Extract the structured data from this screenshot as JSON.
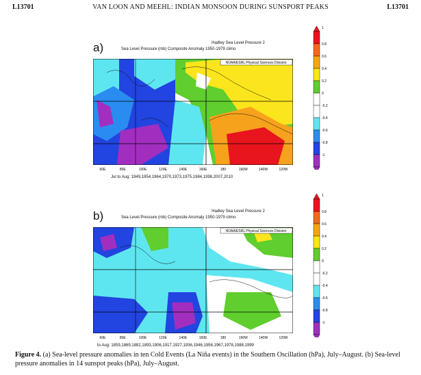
{
  "header": {
    "left": "L13701",
    "center": "VAN LOON AND MEEHL: INDIAN MONSOON DURING SUNSPORT PEAKS",
    "right": "L13701"
  },
  "panels": [
    {
      "label": "a)",
      "title": "Hadley Sea Level Pressure 2",
      "subtitle": "Sea Level Pressure (mb) Composite Anomaly 1950-1979 climo",
      "credit": "NOAA/ESRL Physical Sciences Division",
      "lon_ticks": [
        "60E",
        "80E",
        "100E",
        "120E",
        "140E",
        "160E",
        "180",
        "160W",
        "140W",
        "120W"
      ],
      "years_caption": "Jul to Aug: 1949,1954,1964,1970,1973,1975,1984,1998,2007,2010"
    },
    {
      "label": "b)",
      "title": "Hadley Sea Level Pressure 2",
      "subtitle": "Sea Level Pressure (mb) Composite Anomaly 1950-1979 climo",
      "credit": "NOAA/ESRL Physical Sciences Division",
      "lon_ticks": [
        "60E",
        "80E",
        "100E",
        "120E",
        "140E",
        "160E",
        "180",
        "160W",
        "140W",
        "120W"
      ],
      "years_caption": "to Aug: 1859,1869,1882,1893,1906,1917,1927,1936,1946,1956,1967,1978,1988,1999"
    }
  ],
  "colorbar": {
    "labels": [
      "1",
      "0.8",
      "0.6",
      "0.4",
      "0.2",
      "0",
      "-0.2",
      "-0.4",
      "-0.6",
      "-0.8",
      "-1"
    ],
    "colors": [
      "#e8141e",
      "#f06a1a",
      "#f7a21c",
      "#fbe51c",
      "#5fce2e",
      "#ffffff",
      "#ffffff",
      "#5ee6f0",
      "#2a8cf0",
      "#2244e0",
      "#a22ec0"
    ]
  },
  "figure_caption": {
    "lead": "Figure 4.",
    "text": "(a) Sea-level pressure anomalies in ten Cold Events (La Niña events) in the Southern Oscillation (hPa), July–August. (b) Sea-level pressure anomalies in 14 sunspot peaks (hPa), July–August."
  }
}
